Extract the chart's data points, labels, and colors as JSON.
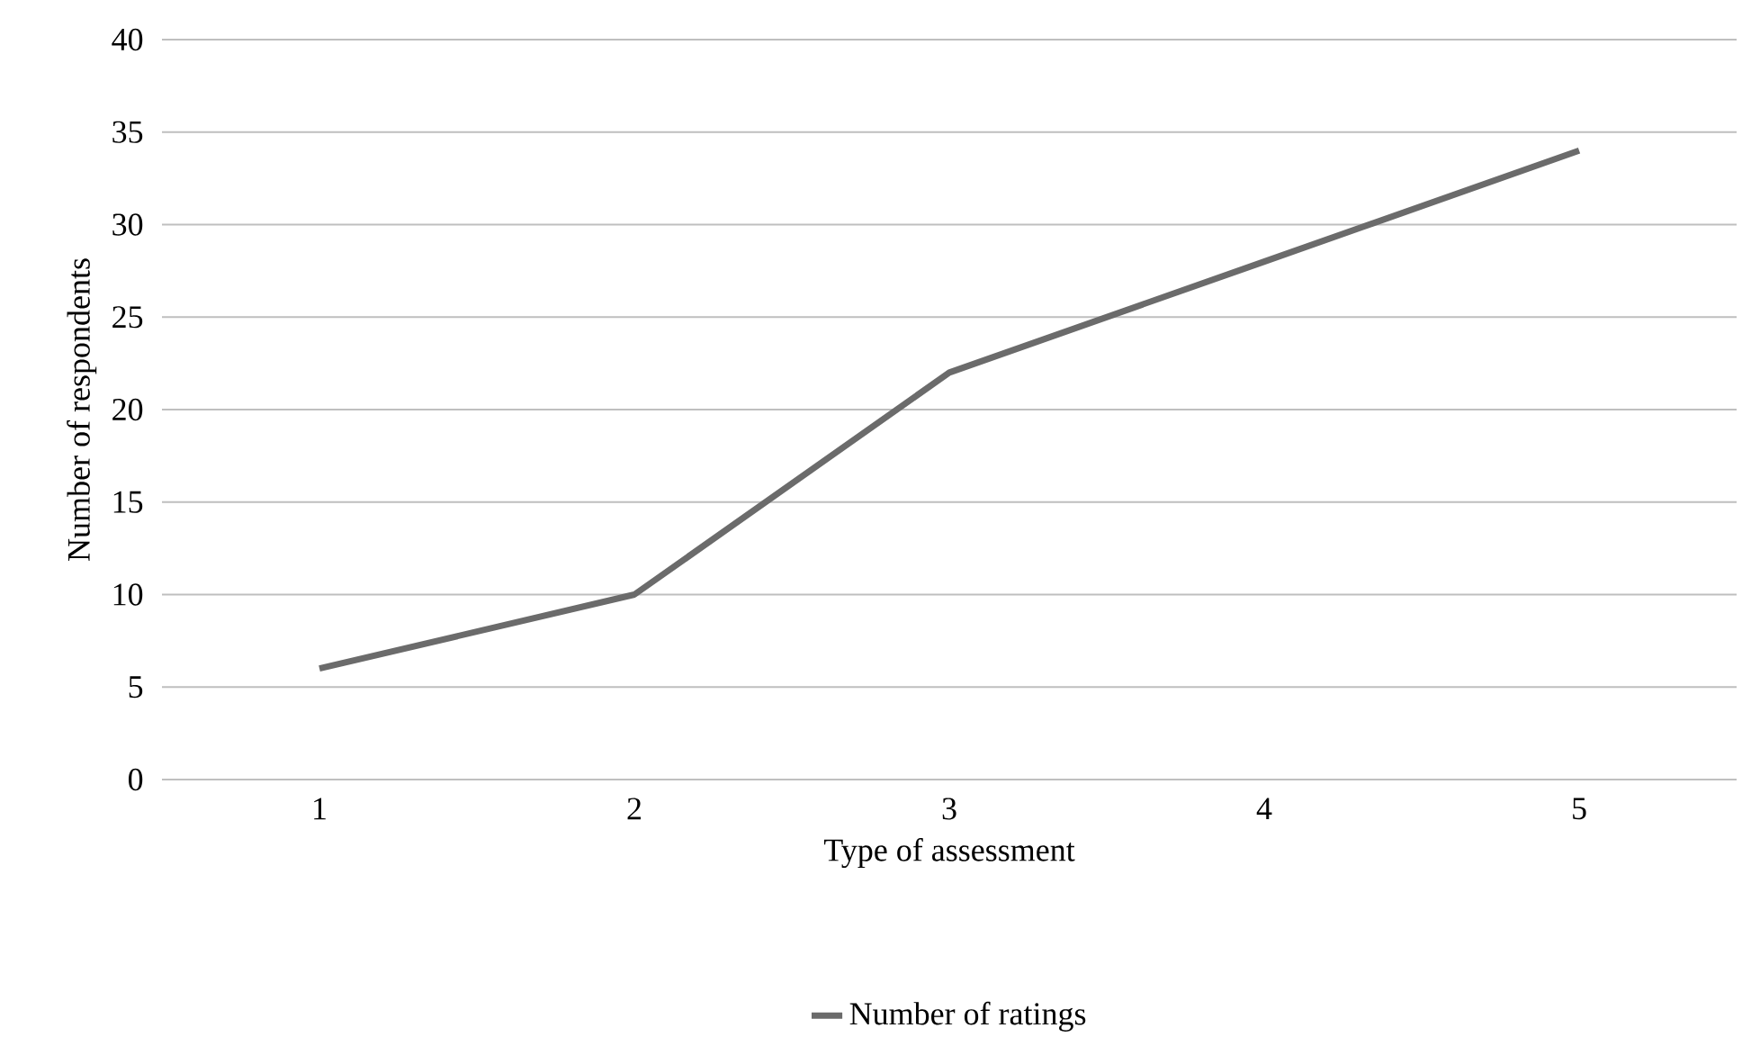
{
  "chart_data": {
    "type": "line",
    "xlabel": "Type of assessment",
    "ylabel": "Number of respondents",
    "categories": [
      "1",
      "2",
      "3",
      "4",
      "5"
    ],
    "series": [
      {
        "name": "Number of ratings",
        "color": "#6b6b6b",
        "values": [
          6,
          10,
          22,
          28,
          34
        ]
      }
    ],
    "ylim": [
      0,
      40
    ],
    "yticks": [
      0,
      5,
      10,
      15,
      20,
      25,
      30,
      35,
      40
    ],
    "grid": "y",
    "legend": "bottom",
    "marker": "none",
    "line_style": "solid"
  }
}
